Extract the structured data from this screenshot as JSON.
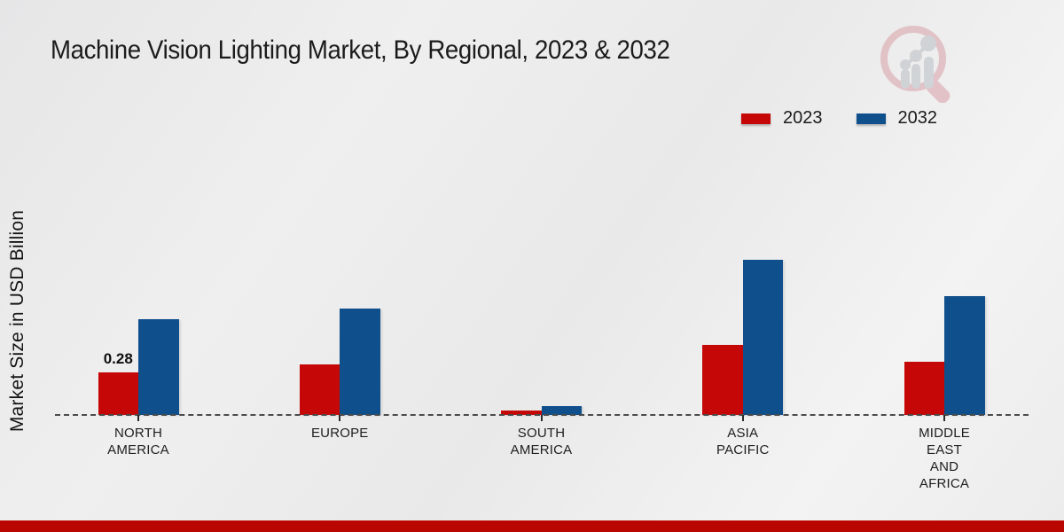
{
  "page": {
    "title": "Machine Vision Lighting Market, By Regional, 2023 & 2032",
    "y_axis_label": "Market Size in USD Billion"
  },
  "legend": {
    "items": [
      {
        "label": "2023",
        "color": "#c50707"
      },
      {
        "label": "2032",
        "color": "#0f4f8c"
      }
    ]
  },
  "logo": {
    "name": "magnifier-bar-chart-logo",
    "circle_color": "#d89fa6",
    "bars_color": "#b9bdc4"
  },
  "footer": {
    "accent_color": "#b90601"
  },
  "colors": {
    "background": "#ececec",
    "baseline": "#4b4b4b",
    "text": "#1b1b1b"
  },
  "chart_data": {
    "type": "bar",
    "title": "Machine Vision Lighting Market, By Regional, 2023 & 2032",
    "xlabel": "",
    "ylabel": "Market Size in USD Billion",
    "ylim": [
      0,
      1.1
    ],
    "grid": false,
    "legend_position": "top-right",
    "baseline_style": "dashed",
    "categories": [
      "NORTH AMERICA",
      "EUROPE",
      "SOUTH AMERICA",
      "ASIA PACIFIC",
      "MIDDLE EAST AND AFRICA"
    ],
    "category_lines": [
      [
        "NORTH",
        "AMERICA"
      ],
      [
        "EUROPE"
      ],
      [
        "SOUTH",
        "AMERICA"
      ],
      [
        "ASIA",
        "PACIFIC"
      ],
      [
        "MIDDLE",
        "EAST",
        "AND",
        "AFRICA"
      ]
    ],
    "series": [
      {
        "name": "2023",
        "color": "#c50707",
        "values": [
          0.28,
          0.33,
          0.03,
          0.46,
          0.35
        ]
      },
      {
        "name": "2032",
        "color": "#0f4f8c",
        "values": [
          0.63,
          0.7,
          0.06,
          1.02,
          0.78
        ]
      }
    ],
    "point_labels": [
      {
        "series_index": 0,
        "category_index": 0,
        "text": "0.28"
      }
    ]
  }
}
